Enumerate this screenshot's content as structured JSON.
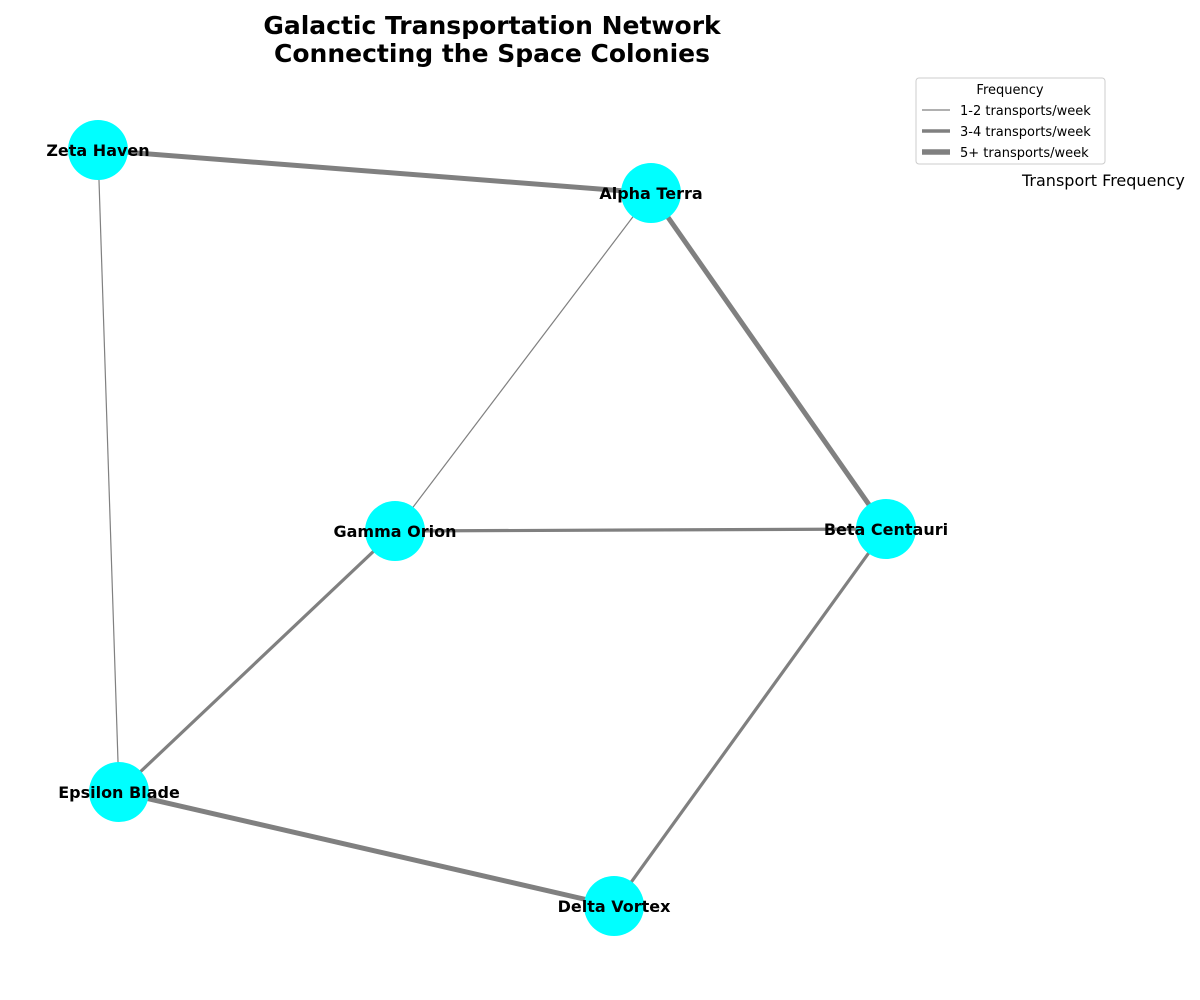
{
  "title_lines": [
    "Galactic Transportation Network",
    "Connecting the Space Colonies"
  ],
  "colors": {
    "node": "#00ffff",
    "edge": "#808080"
  },
  "nodes": [
    {
      "id": "alpha",
      "label": "Alpha Terra"
    },
    {
      "id": "beta",
      "label": "Beta Centauri"
    },
    {
      "id": "gamma",
      "label": "Gamma Orion"
    },
    {
      "id": "delta",
      "label": "Delta Vortex"
    },
    {
      "id": "epsilon",
      "label": "Epsilon Blade"
    },
    {
      "id": "zeta",
      "label": "Zeta Haven"
    }
  ],
  "edges": [
    {
      "source": "zeta",
      "target": "alpha",
      "frequency": "5+ transports/week"
    },
    {
      "source": "alpha",
      "target": "beta",
      "frequency": "5+ transports/week"
    },
    {
      "source": "epsilon",
      "target": "delta",
      "frequency": "5+ transports/week"
    },
    {
      "source": "gamma",
      "target": "beta",
      "frequency": "3-4 transports/week"
    },
    {
      "source": "beta",
      "target": "delta",
      "frequency": "3-4 transports/week"
    },
    {
      "source": "gamma",
      "target": "epsilon",
      "frequency": "3-4 transports/week"
    },
    {
      "source": "alpha",
      "target": "gamma",
      "frequency": "1-2 transports/week"
    },
    {
      "source": "zeta",
      "target": "epsilon",
      "frequency": "1-2 transports/week"
    }
  ],
  "legend": {
    "title": "Frequency",
    "items": [
      "1-2 transports/week",
      "3-4 transports/week",
      "5+ transports/week"
    ]
  },
  "side_label": "Transport Frequency"
}
